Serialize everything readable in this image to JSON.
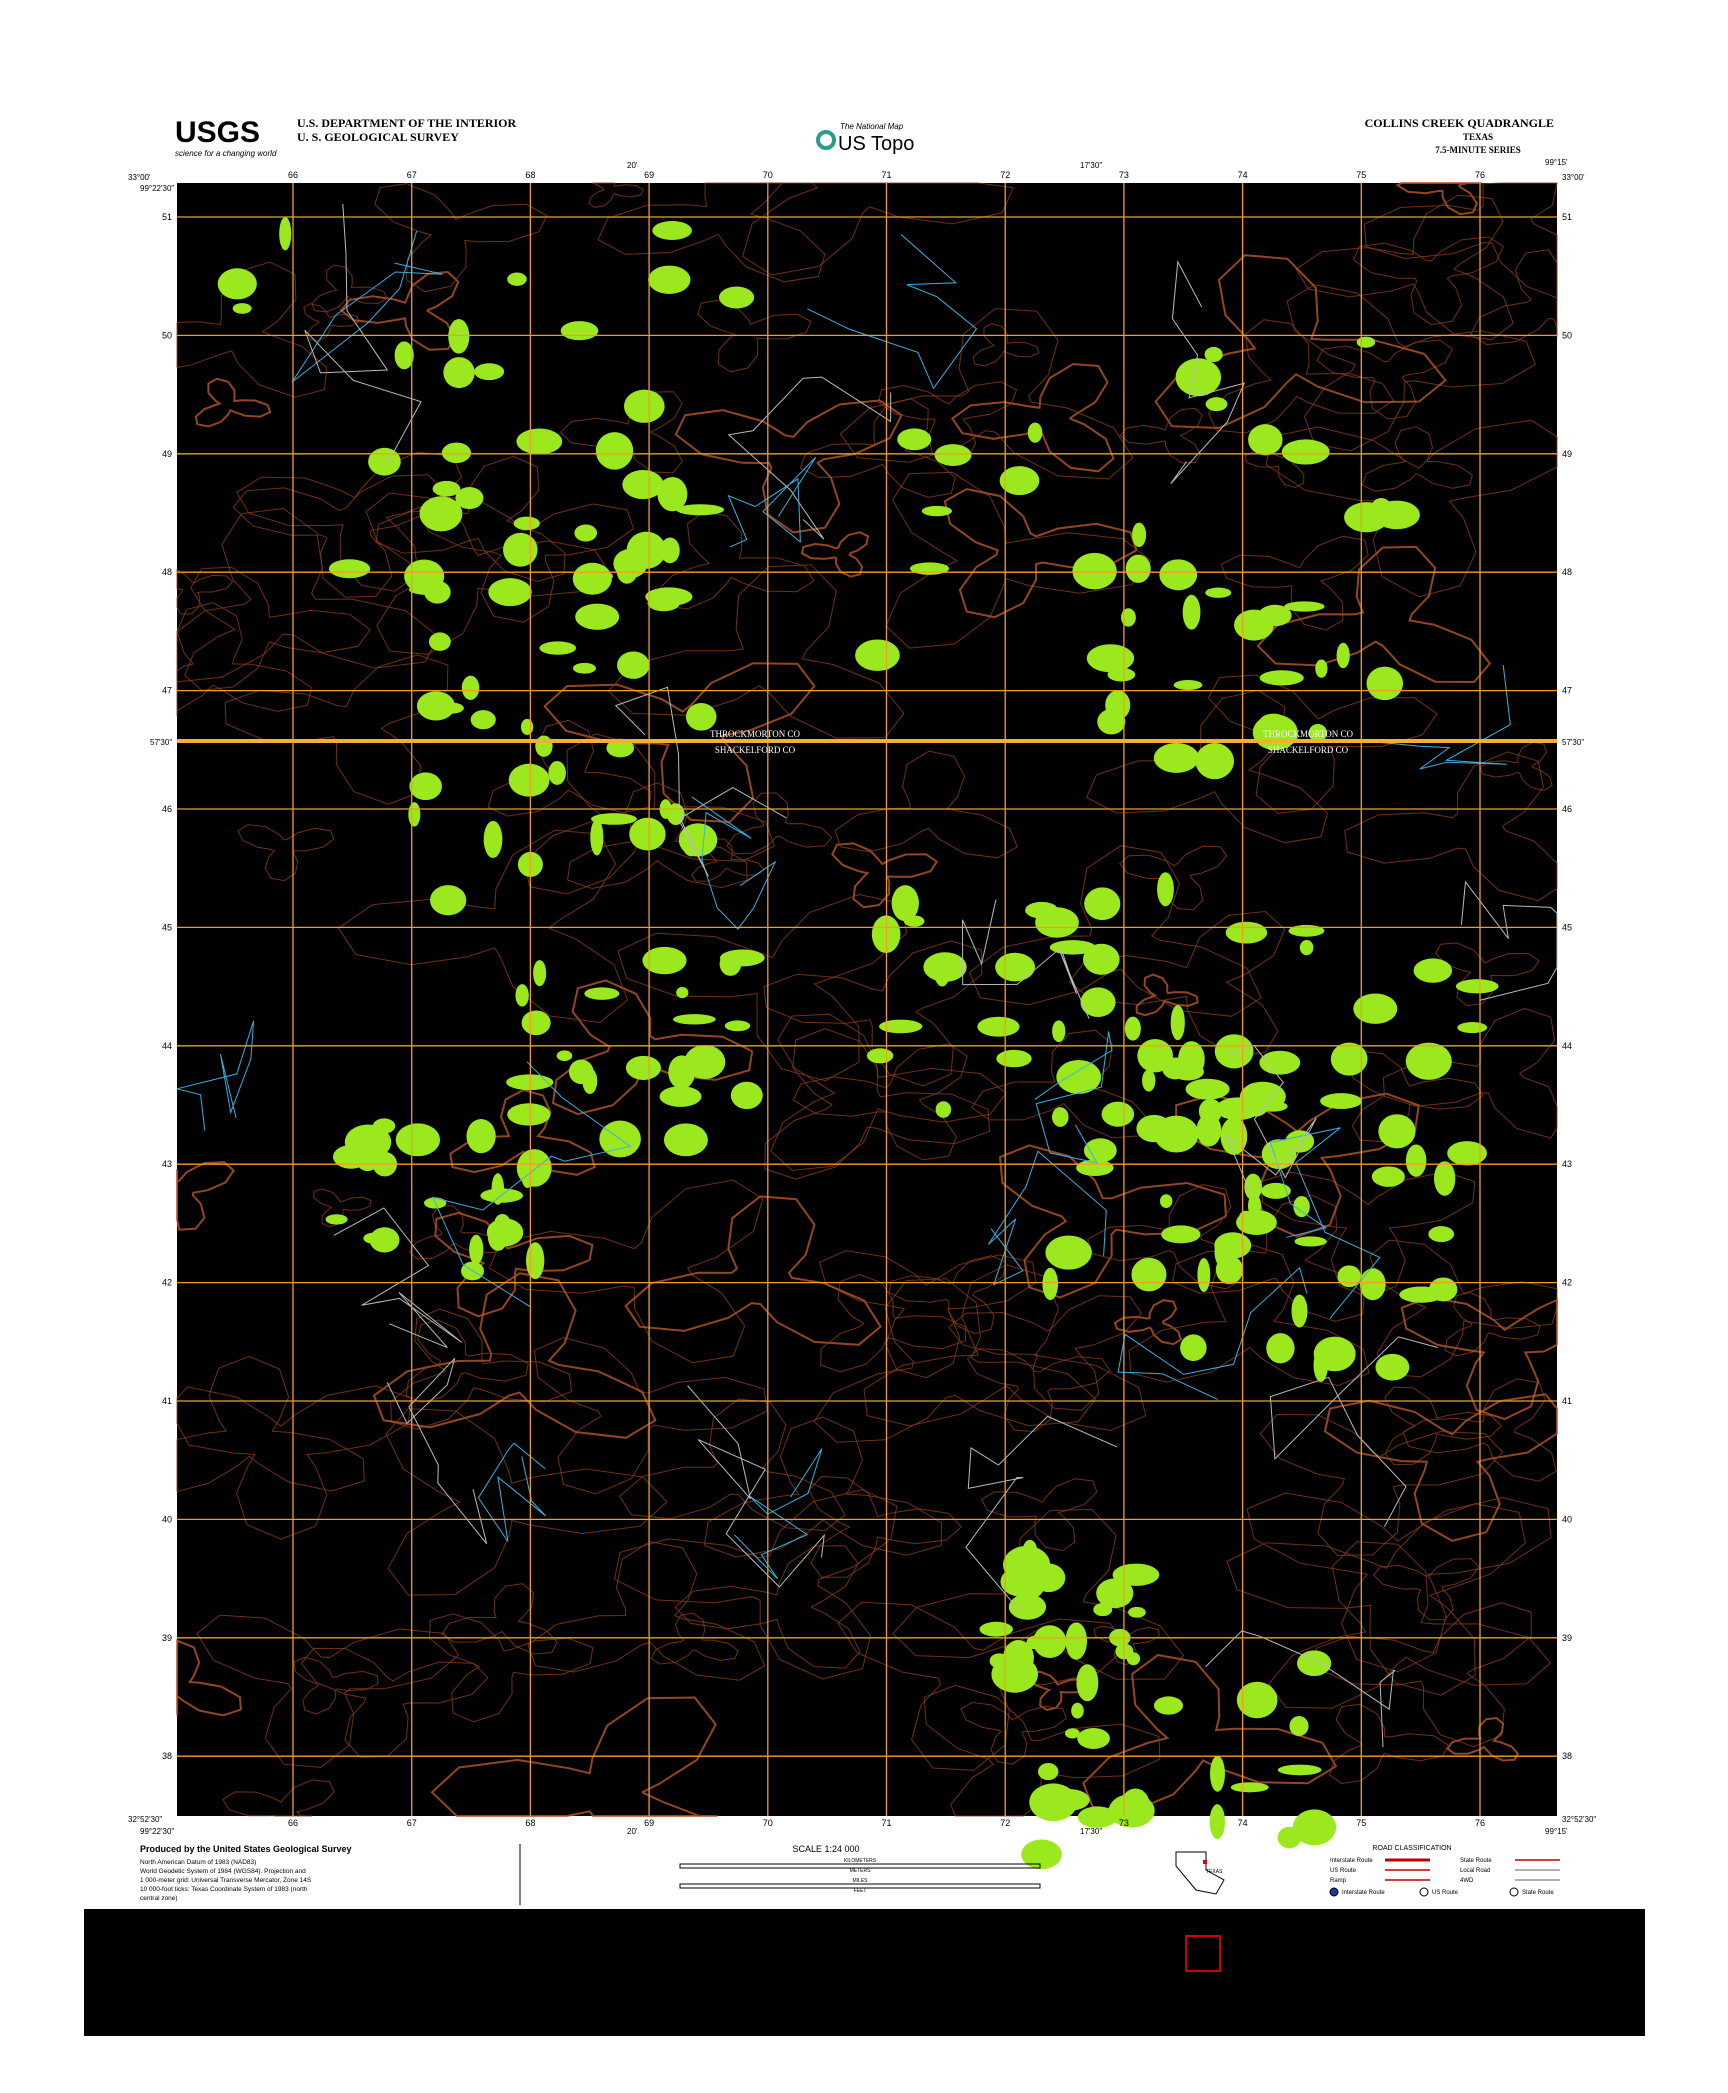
{
  "header": {
    "logo": "USGS",
    "tagline": "science for a changing world",
    "agency": [
      "U.S. DEPARTMENT OF THE INTERIOR",
      "U. S. GEOLOGICAL SURVEY"
    ],
    "national_map": "The National Map",
    "us_topo": "US Topo",
    "quad_title": "COLLINS CREEK QUADRANGLE",
    "state": "TEXAS",
    "series": "7.5-MINUTE SERIES"
  },
  "corners": {
    "top_left_lat": "33°00'",
    "top_left_lon": "99°22'30\"",
    "top_right_lon": "99°15'",
    "top_right_lat": "33°00'",
    "bottom_left_lat": "32°52'30\"",
    "bottom_left_lon": "99°22'30\"",
    "bottom_right_lon": "99°15'",
    "bottom_right_lat": "32°52'30\""
  },
  "grid": {
    "x_labels": [
      "66",
      "67",
      "68",
      "69",
      "70",
      "71",
      "72",
      "73",
      "74",
      "75",
      "76"
    ],
    "y_labels": [
      "51",
      "50",
      "49",
      "48",
      "47",
      "46",
      "45",
      "44",
      "43",
      "42",
      "41",
      "40",
      "39",
      "38"
    ],
    "mid_lat": "57'30\"",
    "mid_lon_top": "20'",
    "mid_lon_top2": "17'30\""
  },
  "features": {
    "county_north": "THROCKMORTON CO",
    "county_south": "SHACKELFORD CO"
  },
  "footer": {
    "producer": "Produced by the United States Geological Survey",
    "datum": [
      "North American Datum of 1983 (NAD83)",
      "World Geodetic System of 1984 (WGS84). Projection and",
      "1 000-meter grid: Universal Transverse Mercator, Zone 14S",
      "10 000-foot ticks: Texas Coordinate System of 1983 (north",
      "central zone)"
    ],
    "scale": "SCALE 1:24 000",
    "scale_units": [
      "KILOMETERS",
      "METERS",
      "MILES",
      "FEET"
    ],
    "state_inset": "TEXAS",
    "road_title": "ROAD CLASSIFICATION",
    "roads": [
      "Interstate Route",
      "US Route",
      "Ramp",
      "State Route",
      "Local Road",
      "4WD"
    ],
    "shields": [
      "Interstate Route",
      "US Route",
      "State Route"
    ]
  }
}
